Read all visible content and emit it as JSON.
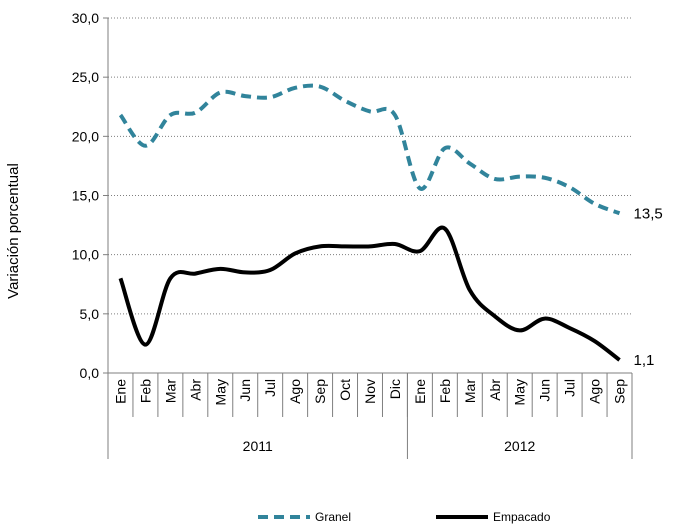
{
  "chart_data": {
    "type": "line",
    "ylabel": "Variación porcentual",
    "ylim": [
      0,
      30
    ],
    "yticks": [
      "0,0",
      "5,0",
      "10,0",
      "15,0",
      "20,0",
      "25,0",
      "30,0"
    ],
    "grid": true,
    "legend_position": "bottom",
    "categories": [
      "Ene",
      "Feb",
      "Mar",
      "Abr",
      "May",
      "Jun",
      "Jul",
      "Ago",
      "Sep",
      "Oct",
      "Nov",
      "Dic",
      "Ene",
      "Feb",
      "Mar",
      "Abr",
      "May",
      "Jun",
      "Jul",
      "Ago",
      "Sep"
    ],
    "groups": [
      {
        "label": "2011",
        "count": 12
      },
      {
        "label": "2012",
        "count": 9
      }
    ],
    "series": [
      {
        "name": "Granel",
        "color": "#31849B",
        "style": "dashed",
        "values": [
          21.8,
          19.2,
          21.8,
          22.0,
          23.7,
          23.4,
          23.3,
          24.1,
          24.2,
          23.0,
          22.1,
          21.8,
          15.6,
          19.0,
          17.7,
          16.4,
          16.6,
          16.5,
          15.7,
          14.3,
          13.5
        ],
        "end_label": "13,5"
      },
      {
        "name": "Empacado",
        "color": "#000000",
        "style": "solid",
        "values": [
          8.0,
          2.4,
          8.0,
          8.4,
          8.8,
          8.5,
          8.7,
          10.1,
          10.7,
          10.7,
          10.7,
          10.9,
          10.3,
          12.2,
          7.0,
          4.8,
          3.6,
          4.6,
          3.8,
          2.7,
          1.1
        ],
        "end_label": "1,1"
      }
    ]
  }
}
